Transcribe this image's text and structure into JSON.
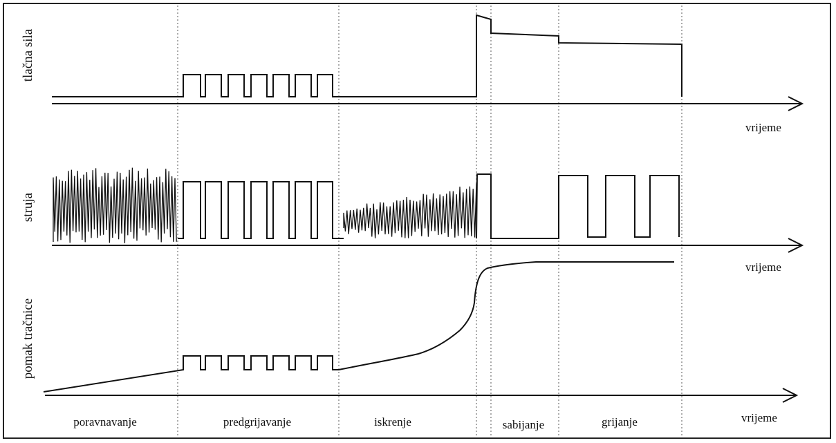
{
  "y_labels": {
    "force": "tlačna sila",
    "current": "struja",
    "displacement": "pomak tračnice"
  },
  "time_label": "vrijeme",
  "phases": [
    "poravnavanje",
    "predgrijavanje",
    "iskrenje",
    "sabijanje",
    "grijanje"
  ]
}
